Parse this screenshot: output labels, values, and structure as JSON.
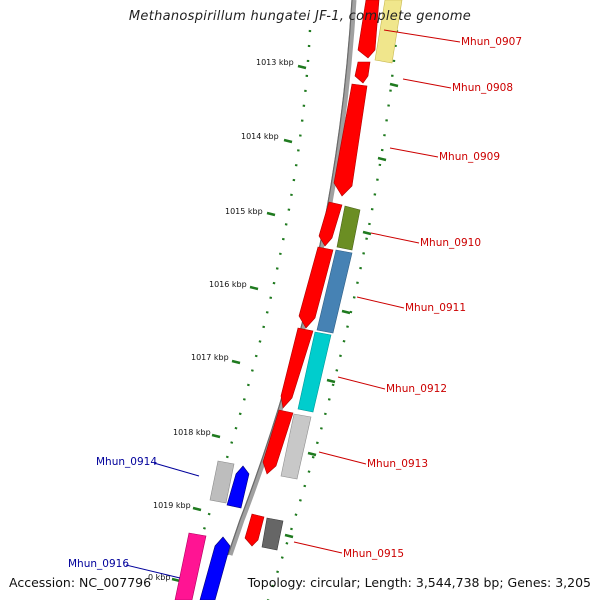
{
  "title": "Methanospirillum hungatei JF-1, complete genome",
  "accession": "Accession: NC_007796",
  "summary": "Topology: circular; Length: 3,544,738 bp; Genes: 3,205",
  "colors": {
    "backbone": "#9a9a9a",
    "tick": "#1f7a1f",
    "plus_label": "#cc0000",
    "minus_label": "#00009b",
    "cds_red": "#ff0000",
    "olive": "#6b8e23",
    "steelblue": "#4682b4",
    "turquoise": "#00cdcd",
    "lightgray": "#bdbdbd",
    "darkgray": "#606060",
    "blue": "#0000ff",
    "pink": "#ff1493",
    "khaki": "#f0e68c"
  },
  "kbp_ticks": [
    "1013 kbp",
    "1014 kbp",
    "1015 kbp",
    "1016 kbp",
    "1017 kbp",
    "1018 kbp",
    "1019 kbp",
    "0 kbp"
  ],
  "genes": [
    {
      "label": "Mhun_0907",
      "strand": "plus"
    },
    {
      "label": "Mhun_0908",
      "strand": "plus"
    },
    {
      "label": "Mhun_0909",
      "strand": "plus"
    },
    {
      "label": "Mhun_0910",
      "strand": "plus"
    },
    {
      "label": "Mhun_0911",
      "strand": "plus"
    },
    {
      "label": "Mhun_0912",
      "strand": "plus"
    },
    {
      "label": "Mhun_0913",
      "strand": "plus"
    },
    {
      "label": "Mhun_0914",
      "strand": "minus"
    },
    {
      "label": "Mhun_0915",
      "strand": "plus"
    },
    {
      "label": "Mhun_0916",
      "strand": "minus"
    }
  ]
}
